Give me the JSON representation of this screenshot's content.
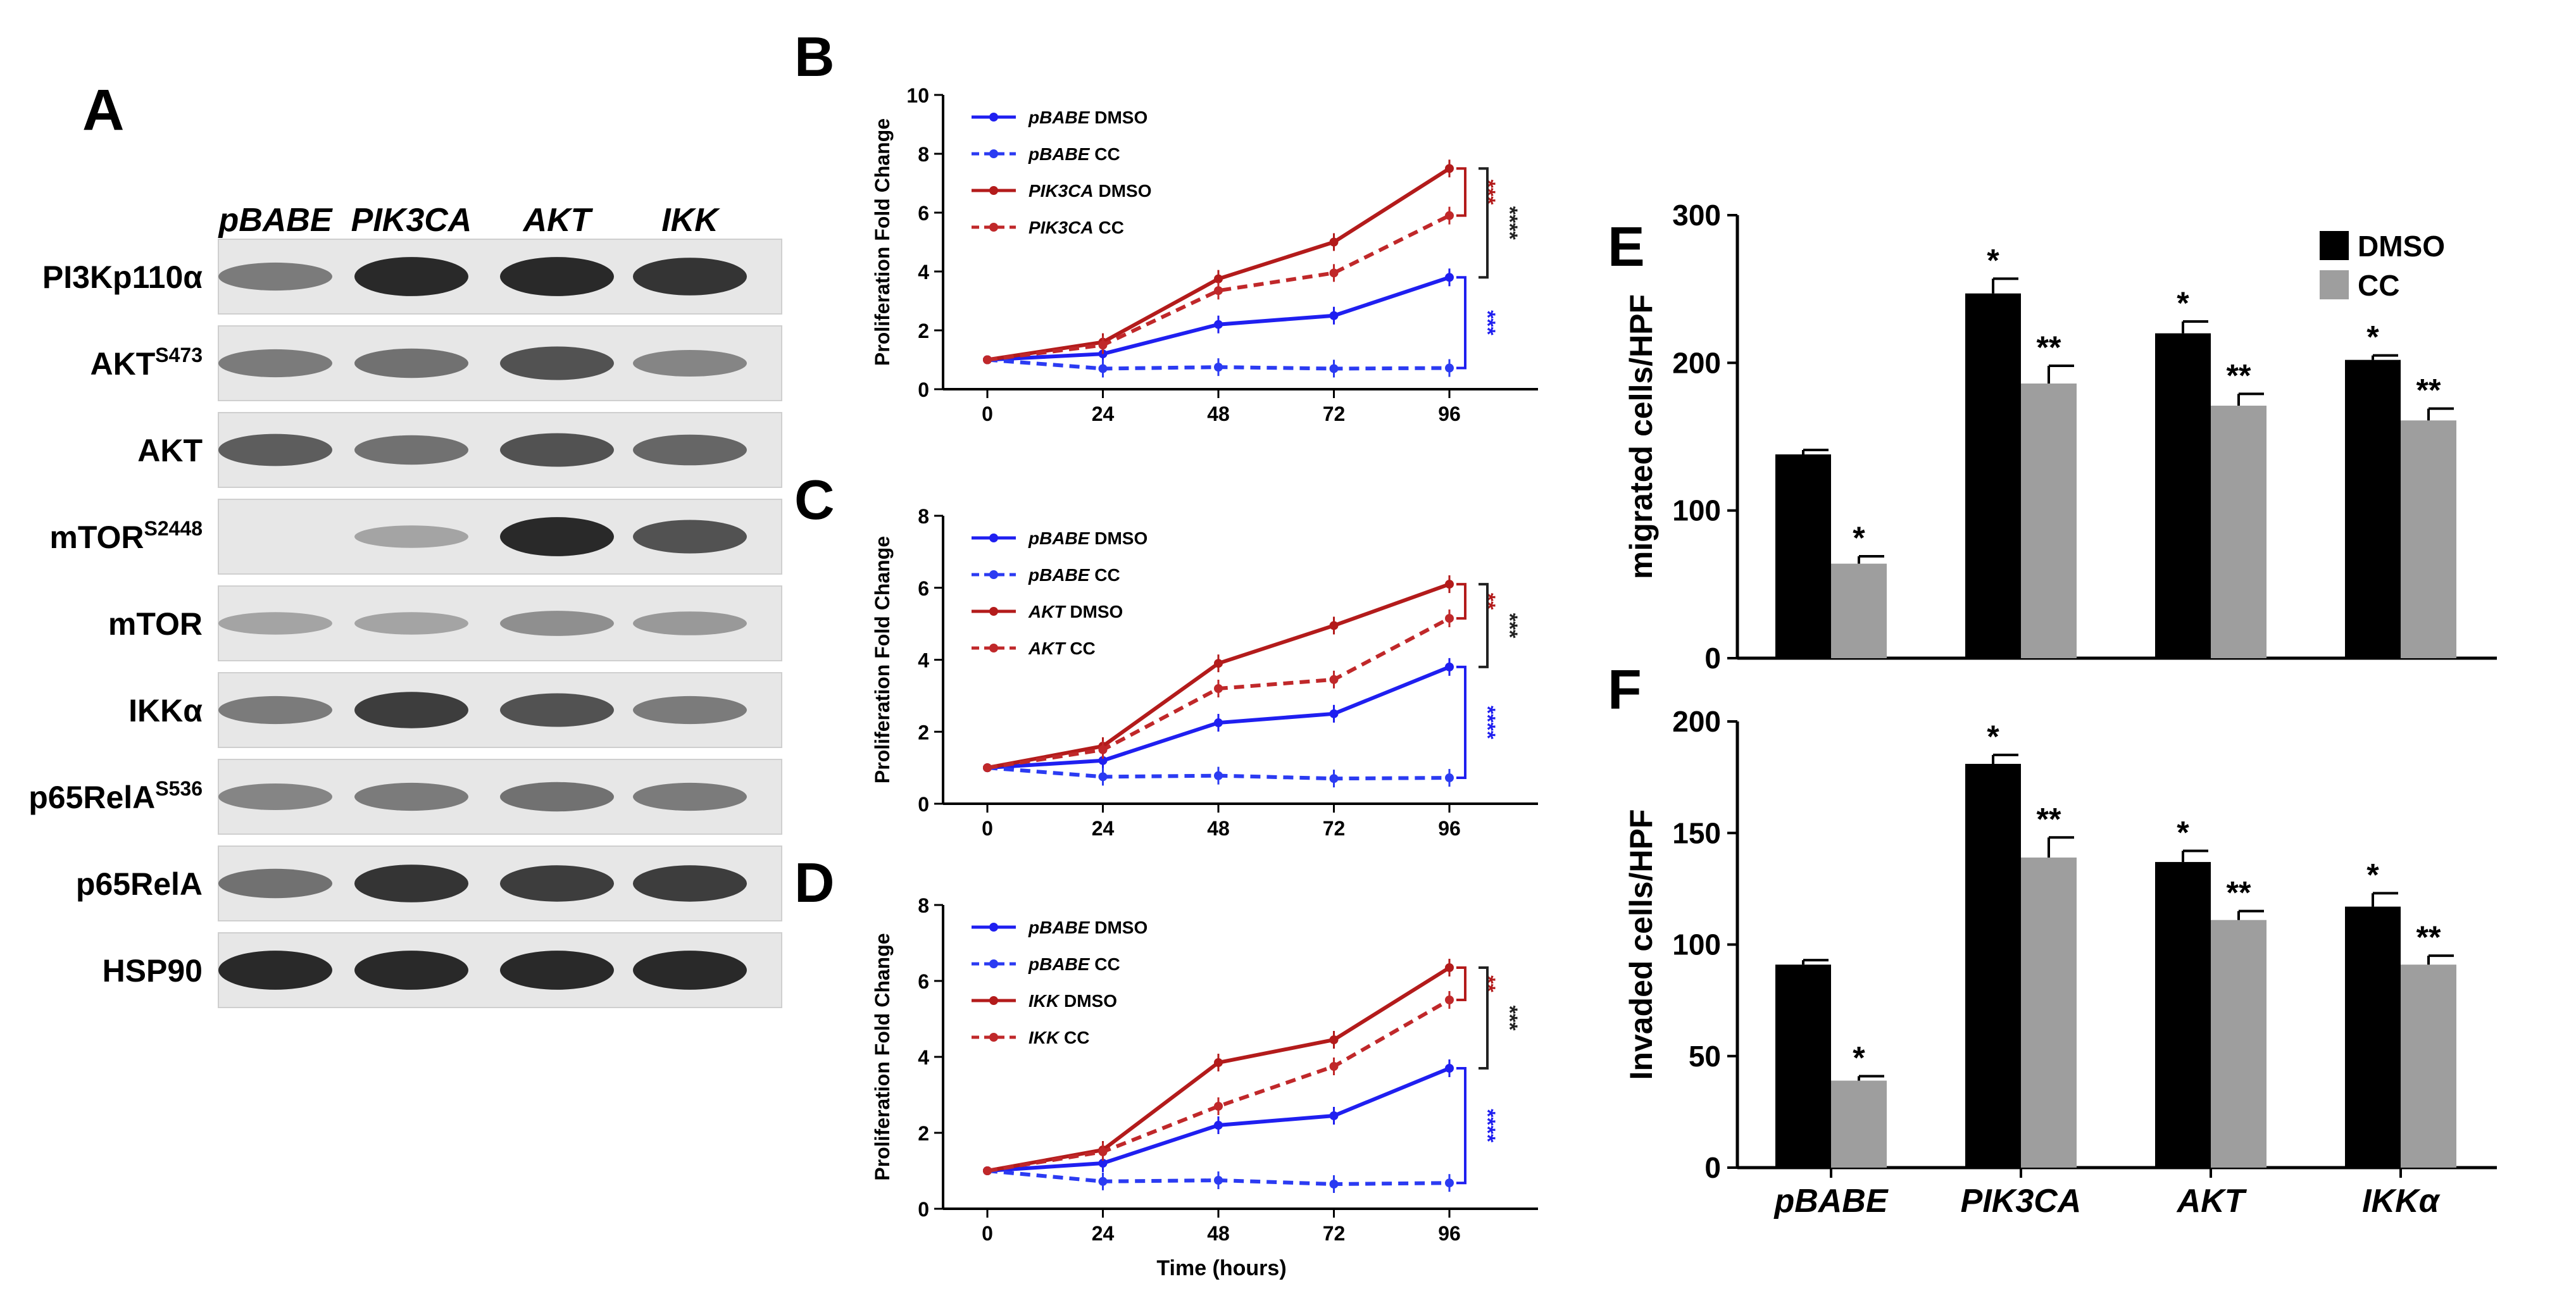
{
  "panel_labels": {
    "a": "A",
    "b": "B",
    "c": "C",
    "d": "D",
    "e": "E",
    "f": "F"
  },
  "blot": {
    "lanes": [
      "pBABE",
      "PIK3CA",
      "AKT",
      "IKK"
    ],
    "proteins": [
      {
        "name": "PI3Kp110α",
        "sup": ""
      },
      {
        "name": "AKT",
        "sup": "S473"
      },
      {
        "name": "AKT",
        "sup": ""
      },
      {
        "name": "mTOR",
        "sup": "S2448"
      },
      {
        "name": "mTOR",
        "sup": ""
      },
      {
        "name": "IKKα",
        "sup": ""
      },
      {
        "name": "p65RelA",
        "sup": "S536"
      },
      {
        "name": "p65RelA",
        "sup": ""
      },
      {
        "name": "HSP90",
        "sup": ""
      }
    ],
    "intensity": [
      [
        0.55,
        0.95,
        0.95,
        0.9
      ],
      [
        0.55,
        0.6,
        0.75,
        0.5
      ],
      [
        0.7,
        0.6,
        0.75,
        0.65
      ],
      [
        0.0,
        0.35,
        0.95,
        0.75
      ],
      [
        0.35,
        0.35,
        0.45,
        0.4
      ],
      [
        0.55,
        0.85,
        0.75,
        0.55
      ],
      [
        0.5,
        0.55,
        0.6,
        0.55
      ],
      [
        0.6,
        0.9,
        0.85,
        0.85
      ],
      [
        0.95,
        0.95,
        0.95,
        0.95
      ]
    ]
  },
  "chart_data": [
    {
      "type": "line",
      "panel": "B",
      "ylabel": "Proliferation Fold Change",
      "xlabel": "",
      "x": [
        0,
        24,
        48,
        72,
        96
      ],
      "xticks": [
        "0",
        "24",
        "48",
        "72",
        "96"
      ],
      "ylim": [
        0,
        10
      ],
      "yticks": [
        "0",
        "2",
        "4",
        "6",
        "8",
        "10"
      ],
      "series": [
        {
          "name": "DMSO",
          "gene": "pBABE",
          "color": "#1f1ff0",
          "dashed": false,
          "values": [
            1.0,
            1.2,
            2.2,
            2.5,
            3.8
          ]
        },
        {
          "name": "CC",
          "gene": "pBABE",
          "color": "#2b3bf2",
          "dashed": true,
          "values": [
            1.0,
            0.7,
            0.75,
            0.7,
            0.72
          ]
        },
        {
          "name": "DMSO",
          "gene": "PIK3CA",
          "color": "#b31b1b",
          "dashed": false,
          "values": [
            1.0,
            1.6,
            3.75,
            5.0,
            7.5
          ]
        },
        {
          "name": "CC",
          "gene": "PIK3CA",
          "color": "#c0282a",
          "dashed": true,
          "values": [
            1.0,
            1.5,
            3.35,
            3.95,
            5.9
          ]
        }
      ],
      "brackets": [
        {
          "label": "***",
          "color": "#b31b1b",
          "from": 7.5,
          "to": 5.9,
          "pos": "inner"
        },
        {
          "label": "****",
          "color": "#222222",
          "from": 7.5,
          "to": 3.8,
          "pos": "outer"
        },
        {
          "label": "***",
          "color": "#1f1ff0",
          "from": 3.8,
          "to": 0.72,
          "pos": "inner"
        }
      ]
    },
    {
      "type": "line",
      "panel": "C",
      "ylabel": "Proliferation Fold Change",
      "xlabel": "",
      "x": [
        0,
        24,
        48,
        72,
        96
      ],
      "xticks": [
        "0",
        "24",
        "48",
        "72",
        "96"
      ],
      "ylim": [
        0,
        8
      ],
      "yticks": [
        "0",
        "2",
        "4",
        "6",
        "8"
      ],
      "series": [
        {
          "name": "DMSO",
          "gene": "pBABE",
          "color": "#1f1ff0",
          "dashed": false,
          "values": [
            1.0,
            1.2,
            2.25,
            2.5,
            3.8
          ]
        },
        {
          "name": "CC",
          "gene": "pBABE",
          "color": "#2b3bf2",
          "dashed": true,
          "values": [
            1.0,
            0.75,
            0.78,
            0.7,
            0.72
          ]
        },
        {
          "name": "DMSO",
          "gene": "AKT",
          "color": "#b31b1b",
          "dashed": false,
          "values": [
            1.0,
            1.6,
            3.9,
            4.95,
            6.1
          ]
        },
        {
          "name": "CC",
          "gene": "AKT",
          "color": "#c0282a",
          "dashed": true,
          "values": [
            1.0,
            1.5,
            3.2,
            3.45,
            5.15
          ]
        }
      ],
      "brackets": [
        {
          "label": "**",
          "color": "#b31b1b",
          "from": 6.1,
          "to": 5.15,
          "pos": "inner"
        },
        {
          "label": "***",
          "color": "#222222",
          "from": 6.1,
          "to": 3.8,
          "pos": "outer"
        },
        {
          "label": "****",
          "color": "#1f1ff0",
          "from": 3.8,
          "to": 0.72,
          "pos": "inner"
        }
      ]
    },
    {
      "type": "line",
      "panel": "D",
      "ylabel": "Proliferation Fold Change",
      "xlabel": "Time (hours)",
      "x": [
        0,
        24,
        48,
        72,
        96
      ],
      "xticks": [
        "0",
        "24",
        "48",
        "72",
        "96"
      ],
      "ylim": [
        0,
        8
      ],
      "yticks": [
        "0",
        "2",
        "4",
        "6",
        "8"
      ],
      "series": [
        {
          "name": "DMSO",
          "gene": "pBABE",
          "color": "#1f1ff0",
          "dashed": false,
          "values": [
            1.0,
            1.2,
            2.2,
            2.45,
            3.7
          ]
        },
        {
          "name": "CC",
          "gene": "pBABE",
          "color": "#2b3bf2",
          "dashed": true,
          "values": [
            1.0,
            0.72,
            0.75,
            0.65,
            0.68
          ]
        },
        {
          "name": "DMSO",
          "gene": "IKK",
          "color": "#b31b1b",
          "dashed": false,
          "values": [
            1.0,
            1.55,
            3.85,
            4.45,
            6.35
          ]
        },
        {
          "name": "CC",
          "gene": "IKK",
          "color": "#c0282a",
          "dashed": true,
          "values": [
            1.0,
            1.5,
            2.7,
            3.75,
            5.5
          ]
        }
      ],
      "brackets": [
        {
          "label": "**",
          "color": "#b31b1b",
          "from": 6.35,
          "to": 5.5,
          "pos": "inner"
        },
        {
          "label": "***",
          "color": "#222222",
          "from": 6.35,
          "to": 3.7,
          "pos": "outer"
        },
        {
          "label": "****",
          "color": "#1f1ff0",
          "from": 3.7,
          "to": 0.68,
          "pos": "inner"
        }
      ]
    },
    {
      "type": "bar",
      "panel": "E",
      "ylabel": "migrated cells/HPF",
      "ylim": [
        0,
        300
      ],
      "yticks": [
        "0",
        "100",
        "200",
        "300"
      ],
      "categories": [
        "pBABE",
        "PIK3CA",
        "AKT",
        "IKKα"
      ],
      "legend_position": "top-right",
      "series": [
        {
          "name": "DMSO",
          "color": "#000000",
          "values": [
            138,
            247,
            220,
            202
          ],
          "errors": [
            3,
            10,
            8,
            3
          ],
          "stars": [
            "",
            "*",
            "*",
            "*"
          ]
        },
        {
          "name": "CC",
          "color": "#9e9e9e",
          "values": [
            64,
            186,
            171,
            161
          ],
          "errors": [
            5,
            12,
            8,
            8
          ],
          "stars": [
            "*",
            "**",
            "**",
            "**"
          ]
        }
      ]
    },
    {
      "type": "bar",
      "panel": "F",
      "ylabel": "Invaded cells/HPF",
      "ylim": [
        0,
        200
      ],
      "yticks": [
        "0",
        "50",
        "100",
        "150",
        "200"
      ],
      "categories": [
        "pBABE",
        "PIK3CA",
        "AKT",
        "IKKα"
      ],
      "series": [
        {
          "name": "DMSO",
          "color": "#000000",
          "values": [
            91,
            181,
            137,
            117
          ],
          "errors": [
            2,
            4,
            5,
            6
          ],
          "stars": [
            "",
            "*",
            "*",
            "*"
          ]
        },
        {
          "name": "CC",
          "color": "#9e9e9e",
          "values": [
            39,
            139,
            111,
            91
          ],
          "errors": [
            2,
            9,
            4,
            4
          ],
          "stars": [
            "*",
            "**",
            "**",
            "**"
          ]
        }
      ]
    }
  ]
}
